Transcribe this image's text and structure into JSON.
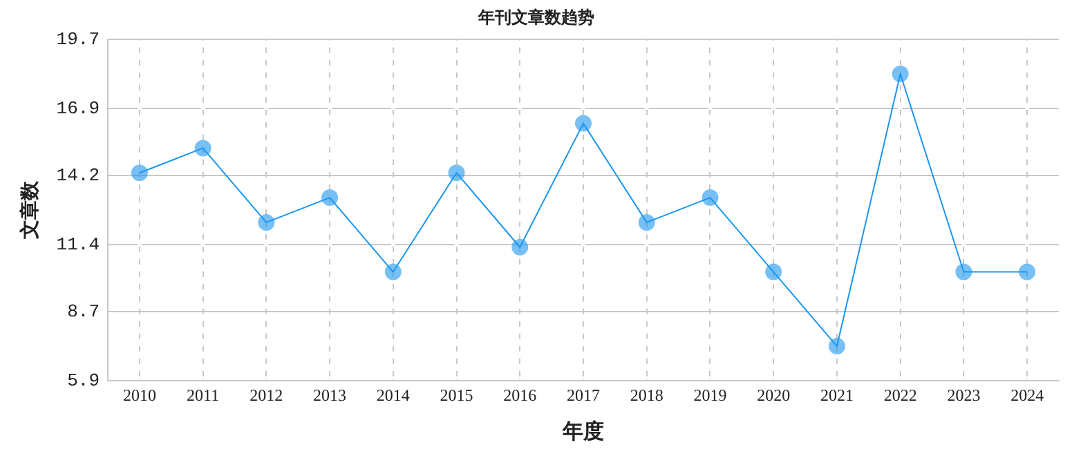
{
  "chart_data": {
    "type": "line",
    "title": "年刊文章数趋势",
    "xlabel": "年度",
    "ylabel": "文章数",
    "categories": [
      "2010",
      "2011",
      "2012",
      "2013",
      "2014",
      "2015",
      "2016",
      "2017",
      "2018",
      "2019",
      "2020",
      "2021",
      "2022",
      "2023",
      "2024"
    ],
    "series": [
      {
        "color": "#1a96f0",
        "values": [
          14.3,
          15.3,
          12.3,
          13.3,
          10.3,
          14.3,
          11.3,
          16.3,
          12.3,
          13.3,
          10.3,
          7.3,
          18.3,
          10.3,
          10.3
        ]
      }
    ],
    "ylim": [
      5.9,
      19.7
    ],
    "yticks": [
      5.9,
      8.7,
      11.4,
      14.2,
      16.9,
      19.7
    ],
    "grid": true,
    "legend": false,
    "marker": "circle",
    "line_style": "solid"
  }
}
